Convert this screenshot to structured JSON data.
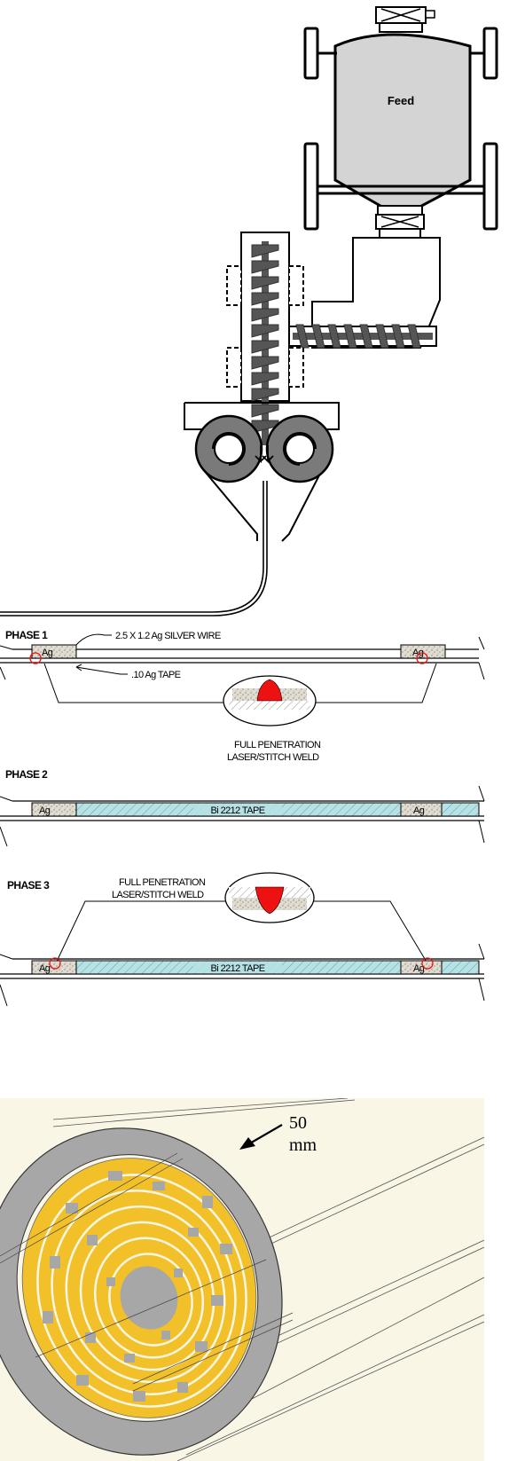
{
  "feeder": {
    "hopper_label": "Feed"
  },
  "phase1": {
    "title": "PHASE 1",
    "wire_callout": "2.5 X 1.2 Ag SILVER WIRE",
    "tape_callout": ".10 Ag TAPE",
    "left_wire_label": "Ag",
    "right_wire_label": "Ag",
    "weld_label_line1": "FULL PENETRATION",
    "weld_label_line2": "LASER/STITCH WELD"
  },
  "phase2": {
    "title": "PHASE 2",
    "left_label": "Ag",
    "tape_label": "Bi 2212 TAPE",
    "right_label": "Ag"
  },
  "phase3": {
    "title": "PHASE 3",
    "weld_label_line1": "FULL PENETRATION",
    "weld_label_line2": "LASER/STITCH WELD",
    "left_label": "Ag",
    "tape_label": "Bi 2212 TAPE",
    "right_label": "Ag"
  },
  "cable": {
    "dimension_value": "50",
    "dimension_unit": "mm"
  },
  "colors": {
    "hopper_fill": "#d4d4d4",
    "roller_fill": "#7a7a7a",
    "auger_fill": "#555555",
    "weld_red": "#ee1111",
    "tape_cyan": "#a9dde1",
    "ag_speckle": "#d8d2c8",
    "cable_background": "#faf6e6",
    "cable_yellow": "#f2c12a",
    "cable_gray": "#a7a7a7"
  }
}
